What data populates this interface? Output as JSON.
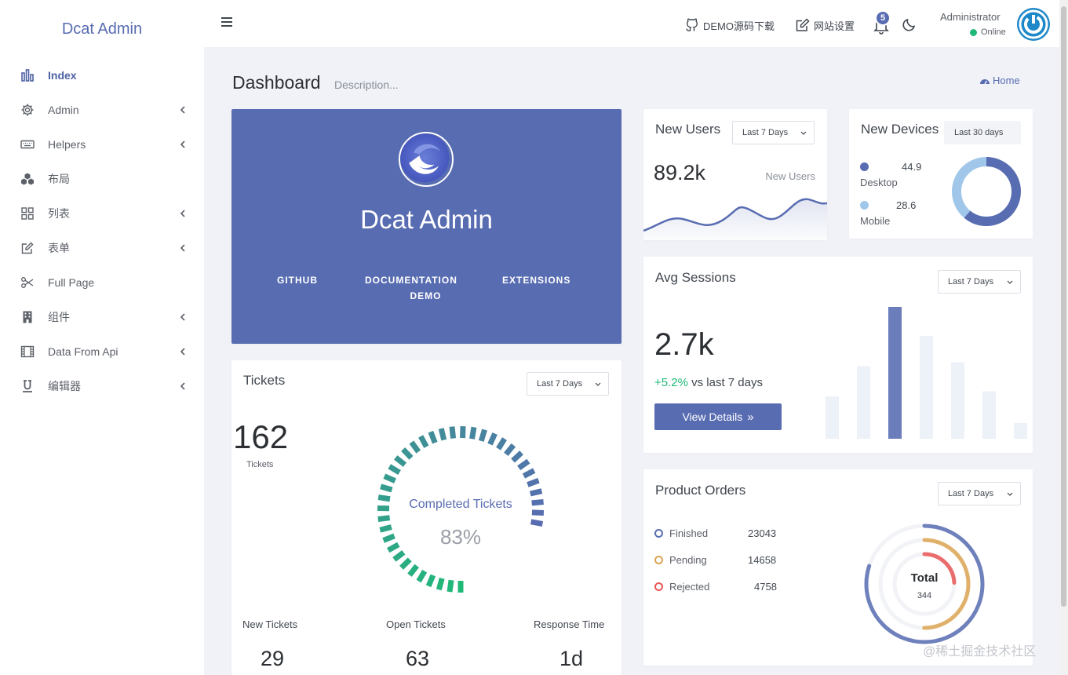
{
  "app": {
    "brand": "Dcat Admin"
  },
  "sidebar": {
    "items": [
      {
        "label": "Index",
        "icon": "bar-chart-icon",
        "active": true,
        "has_children": false
      },
      {
        "label": "Admin",
        "icon": "gear-icon",
        "has_children": true
      },
      {
        "label": "Helpers",
        "icon": "keyboard-icon",
        "has_children": true
      },
      {
        "label": "布局",
        "icon": "cubes-icon",
        "has_children": false
      },
      {
        "label": "列表",
        "icon": "grid-icon",
        "has_children": true
      },
      {
        "label": "表单",
        "icon": "edit-icon",
        "has_children": true
      },
      {
        "label": "Full Page",
        "icon": "scissors-icon",
        "has_children": false
      },
      {
        "label": "组件",
        "icon": "building-icon",
        "has_children": true
      },
      {
        "label": "Data From Api",
        "icon": "film-icon",
        "has_children": true
      },
      {
        "label": "编辑器",
        "icon": "underline-icon",
        "has_children": true
      }
    ]
  },
  "topbar": {
    "demo_link": "DEMO源码下载",
    "settings_link": "网站设置",
    "notification_count": "5",
    "user_name": "Administrator",
    "user_status": "Online"
  },
  "page": {
    "title": "Dashboard",
    "description": "Description...",
    "breadcrumb": "Home"
  },
  "hero": {
    "title": "Dcat Admin",
    "links": [
      "GITHUB",
      "DOCUMENTATION",
      "DEMO",
      "EXTENSIONS"
    ]
  },
  "new_users": {
    "title": "New Users",
    "range": "Last 7 Days",
    "value": "89.2k",
    "label": "New Users"
  },
  "new_devices": {
    "title": "New Devices",
    "range": "Last 30 days",
    "desktop_value": "44.9",
    "desktop_label": "Desktop",
    "mobile_value": "28.6",
    "mobile_label": "Mobile",
    "desktop_color": "#586cb1",
    "mobile_color": "#a0c7e9"
  },
  "avg_sessions": {
    "title": "Avg Sessions",
    "range": "Last 7 Days",
    "value": "2.7k",
    "change": "+5.2%",
    "change_suffix": "vs last 7 days",
    "button": "View Details",
    "bars": [
      0.32,
      0.55,
      1.0,
      0.78,
      0.58,
      0.36,
      0.12
    ],
    "highlight_index": 2
  },
  "tickets": {
    "title": "Tickets",
    "range": "Last 7 Days",
    "value": "162",
    "value_label": "Tickets",
    "gauge_label": "Completed Tickets",
    "gauge_value": "83%",
    "completed_fraction": 0.83,
    "stats": [
      {
        "label": "New Tickets",
        "value": "29"
      },
      {
        "label": "Open Tickets",
        "value": "63"
      },
      {
        "label": "Response Time",
        "value": "1d"
      }
    ]
  },
  "product_orders": {
    "title": "Product Orders",
    "range": "Last 7 Days",
    "items": [
      {
        "label": "Finished",
        "value": "23043",
        "color": "#586cb1"
      },
      {
        "label": "Pending",
        "value": "14658",
        "color": "#dda451"
      },
      {
        "label": "Rejected",
        "value": "4758",
        "color": "#ea5455"
      }
    ],
    "total_label": "Total",
    "total_value": "344"
  },
  "watermark": "@稀土掘金技术社区"
}
